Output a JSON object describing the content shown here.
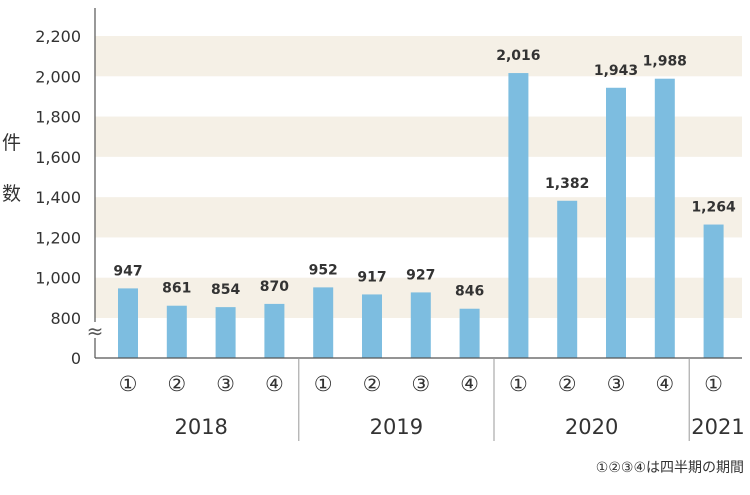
{
  "chart_data": {
    "type": "bar",
    "title": "",
    "ylabel": [
      "件",
      "数"
    ],
    "y_ticks": [
      0,
      800,
      1000,
      1200,
      1400,
      1600,
      1800,
      2000,
      2200
    ],
    "y_tick_labels": [
      "0",
      "800",
      "1,000",
      "1,200",
      "1,400",
      "1,600",
      "1,800",
      "2,000",
      "2,200"
    ],
    "axis_break": "≈",
    "ylim": [
      0,
      2200
    ],
    "grid": "alternating bands",
    "categories": [
      "①",
      "②",
      "③",
      "④",
      "①",
      "②",
      "③",
      "④",
      "①",
      "②",
      "③",
      "④",
      "①"
    ],
    "years": [
      {
        "label": "2018",
        "start": 0,
        "count": 4
      },
      {
        "label": "2019",
        "start": 4,
        "count": 4
      },
      {
        "label": "2020",
        "start": 8,
        "count": 4
      },
      {
        "label": "2021",
        "start": 12,
        "count": 1
      }
    ],
    "values": [
      947,
      861,
      854,
      870,
      952,
      917,
      927,
      846,
      2016,
      1382,
      1943,
      1988,
      1264
    ],
    "value_labels": [
      "947",
      "861",
      "854",
      "870",
      "952",
      "917",
      "927",
      "846",
      "2,016",
      "1,382",
      "1,943",
      "1,988",
      "1,264"
    ],
    "note": "①②③④は四半期の期間"
  },
  "colors": {
    "bar": "#7dbde0",
    "band": "#f5f0e6",
    "axis": "#555555",
    "text": "#333333"
  }
}
